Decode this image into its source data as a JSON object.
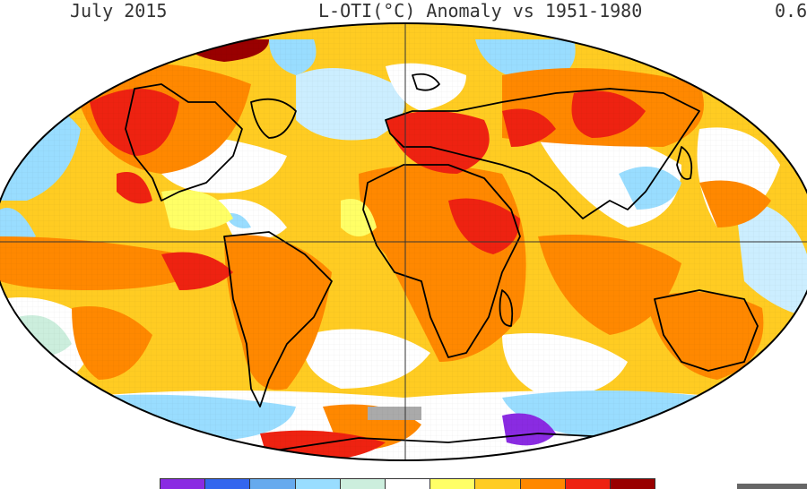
{
  "header": {
    "date": "July 2015",
    "title": "L-OTI(°C) Anomaly vs 1951-1980",
    "global_mean": "0.6"
  },
  "legend": {
    "colors": [
      "#8a2be2",
      "#3366ee",
      "#66aaee",
      "#99ddff",
      "#cceedd",
      "#ffffff",
      "#ffff66",
      "#ffcc22",
      "#ff8800",
      "#ee2211",
      "#990000"
    ]
  },
  "map": {
    "projection": "robinson",
    "ocean_base_color": "#ffcc22",
    "land_outline_color": "#000000",
    "grid_color": "#333333"
  }
}
